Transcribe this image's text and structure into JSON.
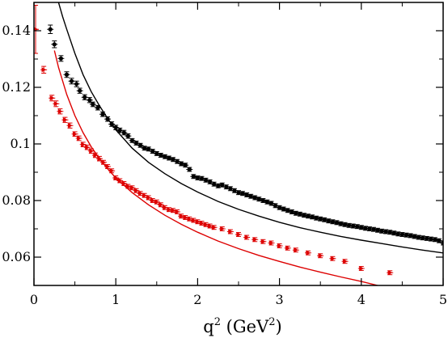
{
  "chart_data": {
    "type": "scatter",
    "title": "",
    "xlabel": {
      "base": "q",
      "power": "2",
      "unit_open": " (GeV",
      "unit_power": "2",
      "unit_close": ")"
    },
    "ylabel": "",
    "xlim": [
      0,
      5
    ],
    "ylim": [
      0.05,
      0.15
    ],
    "x_ticks": [
      0,
      1,
      2,
      3,
      4,
      5
    ],
    "y_ticks": [
      0.06,
      0.08,
      0.1,
      0.12,
      0.14
    ],
    "y_tick_labels": [
      "0.06",
      "0.08",
      "0.1",
      "0.12",
      "0.14"
    ],
    "grid": false,
    "legend": "none",
    "series": [
      {
        "color": "#000000",
        "marker": "circle",
        "points": [
          [
            0.2,
            0.1405,
            0.0015
          ],
          [
            0.25,
            0.1352,
            0.0012
          ],
          [
            0.33,
            0.1302,
            0.001
          ],
          [
            0.4,
            0.1245,
            0.001
          ],
          [
            0.46,
            0.1222,
            0.001
          ],
          [
            0.52,
            0.1212,
            0.001
          ],
          [
            0.56,
            0.1188,
            0.0009
          ],
          [
            0.62,
            0.1165,
            0.0009
          ],
          [
            0.68,
            0.1155,
            0.0009
          ],
          [
            0.72,
            0.114,
            0.0008
          ],
          [
            0.78,
            0.1128,
            0.0008
          ],
          [
            0.84,
            0.1105,
            0.0008
          ],
          [
            0.9,
            0.1088,
            0.0008
          ],
          [
            0.95,
            0.107,
            0.0008
          ],
          [
            1.0,
            0.1058,
            0.0008
          ],
          [
            1.05,
            0.1048,
            0.0008
          ],
          [
            1.1,
            0.104,
            0.0008
          ],
          [
            1.15,
            0.1028,
            0.0008
          ],
          [
            1.2,
            0.1012,
            0.0007
          ],
          [
            1.25,
            0.1003,
            0.0007
          ],
          [
            1.3,
            0.0995,
            0.0007
          ],
          [
            1.35,
            0.0985,
            0.0007
          ],
          [
            1.4,
            0.0982,
            0.0007
          ],
          [
            1.45,
            0.0974,
            0.0007
          ],
          [
            1.5,
            0.0966,
            0.0007
          ],
          [
            1.55,
            0.096,
            0.0007
          ],
          [
            1.6,
            0.0955,
            0.0007
          ],
          [
            1.65,
            0.095,
            0.0007
          ],
          [
            1.7,
            0.0945,
            0.0007
          ],
          [
            1.75,
            0.0938,
            0.0007
          ],
          [
            1.8,
            0.093,
            0.0007
          ],
          [
            1.85,
            0.0925,
            0.0007
          ],
          [
            1.9,
            0.091,
            0.0007
          ],
          [
            1.95,
            0.0885,
            0.0007
          ],
          [
            2.0,
            0.088,
            0.0007
          ],
          [
            2.05,
            0.0878,
            0.0007
          ],
          [
            2.1,
            0.0872,
            0.0007
          ],
          [
            2.15,
            0.0866,
            0.0007
          ],
          [
            2.2,
            0.0858,
            0.0007
          ],
          [
            2.25,
            0.0852,
            0.0007
          ],
          [
            2.3,
            0.0855,
            0.0007
          ],
          [
            2.35,
            0.0848,
            0.0007
          ],
          [
            2.4,
            0.0842,
            0.0007
          ],
          [
            2.45,
            0.0835,
            0.0007
          ],
          [
            2.5,
            0.0828,
            0.0007
          ],
          [
            2.55,
            0.0825,
            0.0007
          ],
          [
            2.6,
            0.082,
            0.0007
          ],
          [
            2.65,
            0.0815,
            0.0007
          ],
          [
            2.7,
            0.081,
            0.0007
          ],
          [
            2.75,
            0.0805,
            0.0007
          ],
          [
            2.8,
            0.08,
            0.0007
          ],
          [
            2.85,
            0.0795,
            0.0007
          ],
          [
            2.9,
            0.079,
            0.0007
          ],
          [
            2.95,
            0.0782,
            0.0007
          ],
          [
            3.0,
            0.0775,
            0.0007
          ],
          [
            3.05,
            0.077,
            0.0007
          ],
          [
            3.1,
            0.0765,
            0.0007
          ],
          [
            3.15,
            0.076,
            0.0007
          ],
          [
            3.2,
            0.0755,
            0.0007
          ],
          [
            3.25,
            0.0752,
            0.0007
          ],
          [
            3.3,
            0.0748,
            0.0007
          ],
          [
            3.35,
            0.0745,
            0.0007
          ],
          [
            3.4,
            0.0742,
            0.0007
          ],
          [
            3.45,
            0.0738,
            0.0007
          ],
          [
            3.5,
            0.0735,
            0.0007
          ],
          [
            3.55,
            0.0732,
            0.0007
          ],
          [
            3.6,
            0.0728,
            0.0007
          ],
          [
            3.65,
            0.0725,
            0.0007
          ],
          [
            3.7,
            0.0722,
            0.0007
          ],
          [
            3.75,
            0.0718,
            0.0007
          ],
          [
            3.8,
            0.0715,
            0.0007
          ],
          [
            3.85,
            0.0712,
            0.0007
          ],
          [
            3.9,
            0.071,
            0.0007
          ],
          [
            3.95,
            0.0708,
            0.0007
          ],
          [
            4.0,
            0.0705,
            0.0007
          ],
          [
            4.05,
            0.0702,
            0.0007
          ],
          [
            4.1,
            0.07,
            0.0007
          ],
          [
            4.15,
            0.0698,
            0.0007
          ],
          [
            4.2,
            0.0695,
            0.0007
          ],
          [
            4.25,
            0.0692,
            0.0007
          ],
          [
            4.3,
            0.069,
            0.0007
          ],
          [
            4.35,
            0.0688,
            0.0007
          ],
          [
            4.4,
            0.0685,
            0.0007
          ],
          [
            4.45,
            0.0682,
            0.0007
          ],
          [
            4.5,
            0.068,
            0.0007
          ],
          [
            4.55,
            0.0678,
            0.0007
          ],
          [
            4.6,
            0.0676,
            0.0007
          ],
          [
            4.65,
            0.0673,
            0.0007
          ],
          [
            4.7,
            0.067,
            0.0007
          ],
          [
            4.75,
            0.0668,
            0.0007
          ],
          [
            4.8,
            0.0666,
            0.0007
          ],
          [
            4.85,
            0.0664,
            0.0007
          ],
          [
            4.9,
            0.0662,
            0.0007
          ],
          [
            4.95,
            0.0658,
            0.0007
          ],
          [
            5.0,
            0.065,
            0.0007
          ]
        ]
      },
      {
        "color": "#dd0000",
        "marker": "triangle-right",
        "points": [
          [
            0.02,
            0.1405,
            0.0085
          ],
          [
            0.12,
            0.1262,
            0.0012
          ],
          [
            0.22,
            0.1162,
            0.001
          ],
          [
            0.27,
            0.1142,
            0.001
          ],
          [
            0.32,
            0.1115,
            0.0009
          ],
          [
            0.38,
            0.1085,
            0.0009
          ],
          [
            0.44,
            0.1065,
            0.0009
          ],
          [
            0.5,
            0.1035,
            0.0008
          ],
          [
            0.55,
            0.102,
            0.0008
          ],
          [
            0.6,
            0.0998,
            0.0008
          ],
          [
            0.65,
            0.0988,
            0.0008
          ],
          [
            0.7,
            0.0975,
            0.0008
          ],
          [
            0.75,
            0.096,
            0.0008
          ],
          [
            0.8,
            0.0948,
            0.0008
          ],
          [
            0.85,
            0.0935,
            0.0007
          ],
          [
            0.9,
            0.092,
            0.0007
          ],
          [
            0.95,
            0.0905,
            0.0007
          ],
          [
            1.0,
            0.088,
            0.0007
          ],
          [
            1.05,
            0.087,
            0.0007
          ],
          [
            1.1,
            0.086,
            0.0007
          ],
          [
            1.15,
            0.085,
            0.0007
          ],
          [
            1.2,
            0.0845,
            0.0007
          ],
          [
            1.25,
            0.0835,
            0.0007
          ],
          [
            1.3,
            0.0825,
            0.0007
          ],
          [
            1.35,
            0.0818,
            0.0007
          ],
          [
            1.4,
            0.081,
            0.0007
          ],
          [
            1.45,
            0.08,
            0.0007
          ],
          [
            1.5,
            0.0795,
            0.0007
          ],
          [
            1.55,
            0.0785,
            0.0007
          ],
          [
            1.6,
            0.0775,
            0.0007
          ],
          [
            1.65,
            0.0768,
            0.0007
          ],
          [
            1.7,
            0.0765,
            0.0007
          ],
          [
            1.75,
            0.076,
            0.0007
          ],
          [
            1.8,
            0.0745,
            0.0007
          ],
          [
            1.85,
            0.074,
            0.0007
          ],
          [
            1.9,
            0.0735,
            0.0007
          ],
          [
            1.95,
            0.073,
            0.0007
          ],
          [
            2.0,
            0.0725,
            0.0007
          ],
          [
            2.05,
            0.072,
            0.0007
          ],
          [
            2.1,
            0.0715,
            0.0007
          ],
          [
            2.15,
            0.071,
            0.0007
          ],
          [
            2.2,
            0.0705,
            0.0007
          ],
          [
            2.3,
            0.07,
            0.0007
          ],
          [
            2.4,
            0.069,
            0.0007
          ],
          [
            2.5,
            0.068,
            0.0007
          ],
          [
            2.6,
            0.067,
            0.0007
          ],
          [
            2.7,
            0.0662,
            0.0007
          ],
          [
            2.8,
            0.0655,
            0.0007
          ],
          [
            2.9,
            0.065,
            0.0007
          ],
          [
            3.0,
            0.064,
            0.0007
          ],
          [
            3.1,
            0.0632,
            0.0007
          ],
          [
            3.2,
            0.0625,
            0.0007
          ],
          [
            3.35,
            0.0615,
            0.0007
          ],
          [
            3.5,
            0.0605,
            0.0007
          ],
          [
            3.65,
            0.0595,
            0.0007
          ],
          [
            3.8,
            0.0585,
            0.0007
          ],
          [
            4.0,
            0.056,
            0.0007
          ],
          [
            4.35,
            0.0545,
            0.0007
          ]
        ]
      }
    ],
    "curves": [
      {
        "color": "#000000",
        "x": [
          0.3,
          0.35,
          0.4,
          0.5,
          0.6,
          0.7,
          0.8,
          0.9,
          1.0,
          1.2,
          1.4,
          1.6,
          1.8,
          2.0,
          2.25,
          2.5,
          2.75,
          3.0,
          3.25,
          3.5,
          3.75,
          4.0,
          4.25,
          4.5,
          4.75,
          5.0
        ],
        "y": [
          0.15,
          0.145,
          0.1405,
          0.132,
          0.1245,
          0.1185,
          0.1135,
          0.109,
          0.105,
          0.0985,
          0.0935,
          0.0895,
          0.086,
          0.083,
          0.0797,
          0.0769,
          0.0745,
          0.0723,
          0.0704,
          0.0688,
          0.0673,
          0.066,
          0.0648,
          0.0636,
          0.0625,
          0.0615
        ]
      },
      {
        "color": "#dd0000",
        "x": [
          0.25,
          0.3,
          0.4,
          0.5,
          0.6,
          0.7,
          0.8,
          0.9,
          1.0,
          1.2,
          1.4,
          1.6,
          1.8,
          2.0,
          2.25,
          2.5,
          2.75,
          3.0,
          3.25,
          3.5,
          3.75,
          4.0,
          4.2
        ],
        "y": [
          0.133,
          0.127,
          0.1175,
          0.11,
          0.104,
          0.099,
          0.0948,
          0.0912,
          0.088,
          0.0828,
          0.0785,
          0.0748,
          0.0716,
          0.0688,
          0.0657,
          0.063,
          0.0606,
          0.0585,
          0.0565,
          0.0547,
          0.053,
          0.0514,
          0.05
        ]
      }
    ]
  }
}
